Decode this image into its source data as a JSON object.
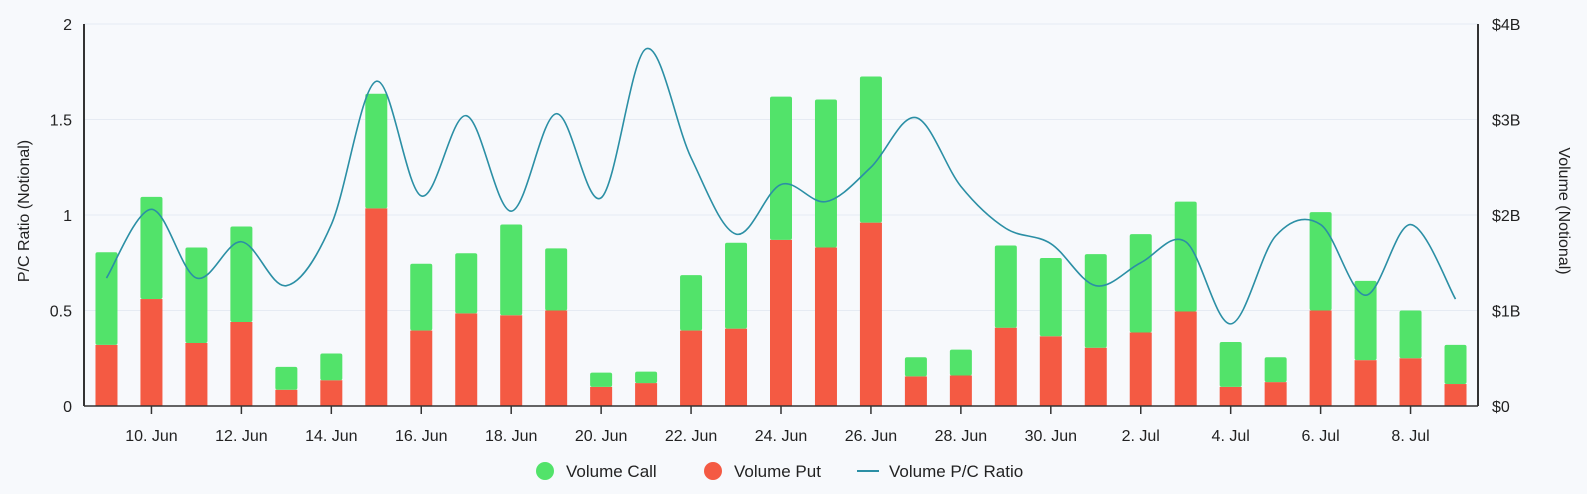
{
  "chart_data": {
    "type": "bar+line",
    "colors": {
      "call": "#52e36a",
      "put": "#f45a43",
      "ratio": "#2b8fa5",
      "grid": "#e6ebf3",
      "axis": "#333333"
    },
    "x": [
      "9 Jun",
      "10 Jun",
      "11 Jun",
      "12 Jun",
      "13 Jun",
      "14 Jun",
      "15 Jun",
      "16 Jun",
      "17 Jun",
      "18 Jun",
      "19 Jun",
      "20 Jun",
      "21 Jun",
      "22 Jun",
      "23 Jun",
      "24 Jun",
      "25 Jun",
      "26 Jun",
      "27 Jun",
      "28 Jun",
      "29 Jun",
      "30 Jun",
      "1 Jul",
      "2 Jul",
      "3 Jul",
      "4 Jul",
      "5 Jul",
      "6 Jul",
      "7 Jul",
      "8 Jul",
      "9 Jul"
    ],
    "x_tick_labels": [
      "10. Jun",
      "12. Jun",
      "14. Jun",
      "16. Jun",
      "18. Jun",
      "20. Jun",
      "22. Jun",
      "24. Jun",
      "26. Jun",
      "28. Jun",
      "30. Jun",
      "2. Jul",
      "4. Jul",
      "6. Jul",
      "8. Jul"
    ],
    "x_tick_indices": [
      1,
      3,
      5,
      7,
      9,
      11,
      13,
      15,
      17,
      19,
      21,
      23,
      25,
      27,
      29
    ],
    "y_left": {
      "label": "P/C Ratio (Notional)",
      "min": 0,
      "max": 2,
      "ticks": [
        "0",
        "0.5",
        "1",
        "1.5",
        "2"
      ],
      "tick_values": [
        0,
        0.5,
        1,
        1.5,
        2
      ]
    },
    "y_right": {
      "label": "Volume (Notional)",
      "min": 0,
      "max": 4,
      "unit": "B",
      "ticks": [
        "$0",
        "$1B",
        "$2B",
        "$3B",
        "$4B"
      ],
      "tick_values": [
        0,
        1,
        2,
        3,
        4
      ]
    },
    "series": [
      {
        "name": "Volume Call",
        "type": "bar",
        "axis": "right",
        "values": [
          0.97,
          1.07,
          1.0,
          1.0,
          0.24,
          0.28,
          1.2,
          0.7,
          0.63,
          0.95,
          0.65,
          0.15,
          0.12,
          0.58,
          0.9,
          1.5,
          1.55,
          1.53,
          0.2,
          0.27,
          0.86,
          0.82,
          0.98,
          1.03,
          1.15,
          0.47,
          0.26,
          1.03,
          0.83,
          0.5,
          0.41
        ]
      },
      {
        "name": "Volume Put",
        "type": "bar",
        "axis": "right",
        "values": [
          0.64,
          1.12,
          0.66,
          0.88,
          0.17,
          0.27,
          2.07,
          0.79,
          0.97,
          0.95,
          1.0,
          0.2,
          0.24,
          0.79,
          0.81,
          1.74,
          1.66,
          1.92,
          0.31,
          0.32,
          0.82,
          0.73,
          0.61,
          0.77,
          0.99,
          0.2,
          0.25,
          1.0,
          0.48,
          0.5,
          0.23
        ]
      },
      {
        "name": "Volume P/C Ratio",
        "type": "line",
        "axis": "left",
        "values": [
          0.67,
          1.03,
          0.67,
          0.86,
          0.63,
          0.95,
          1.7,
          1.1,
          1.52,
          1.02,
          1.53,
          1.09,
          1.87,
          1.3,
          0.9,
          1.16,
          1.07,
          1.25,
          1.51,
          1.15,
          0.93,
          0.85,
          0.63,
          0.75,
          0.86,
          0.43,
          0.89,
          0.95,
          0.58,
          0.95,
          0.56
        ]
      }
    ],
    "legend": {
      "placement": "bottom-center",
      "items": [
        "Volume Call",
        "Volume Put",
        "Volume P/C Ratio"
      ]
    },
    "grid": true
  }
}
